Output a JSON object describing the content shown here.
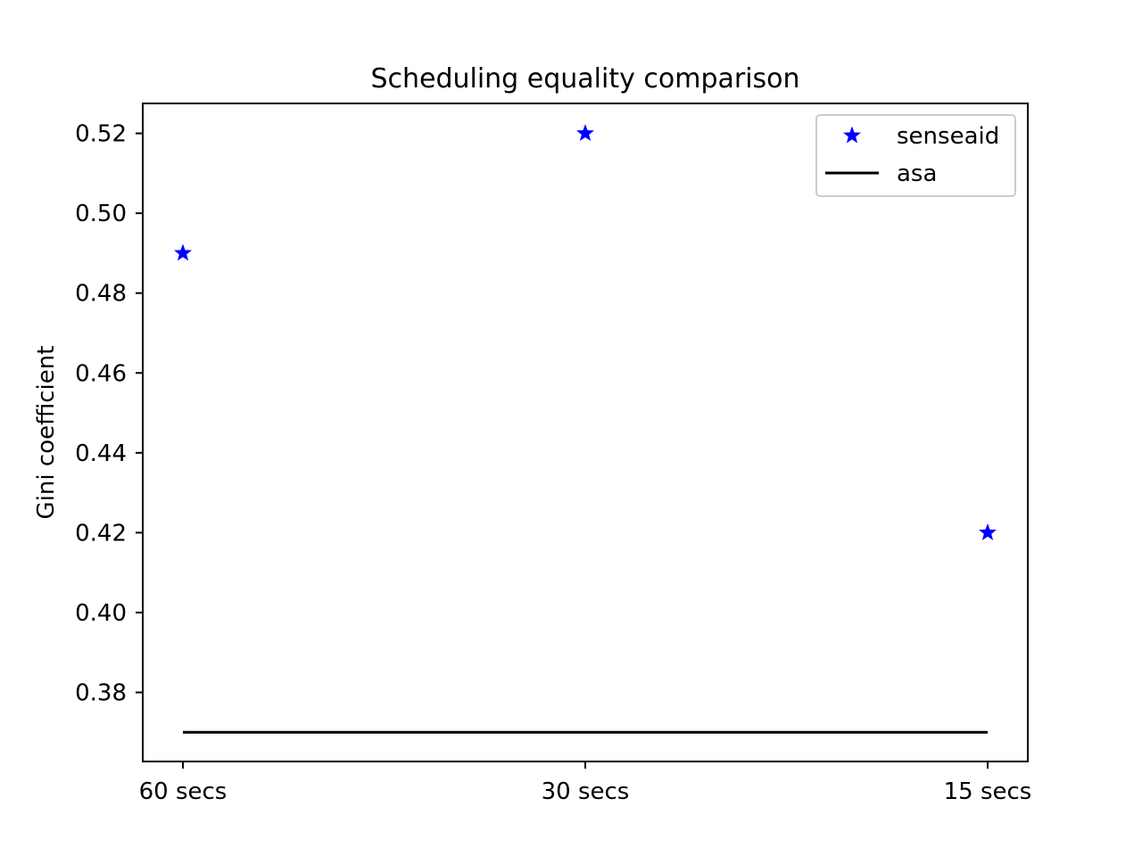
{
  "chart_data": {
    "type": "scatter",
    "title": "Scheduling equality comparison",
    "xlabel": "",
    "ylabel": "Gini coefficient",
    "categories": [
      "60 secs",
      "30 secs",
      "15 secs"
    ],
    "yticks": [
      "0.38",
      "0.40",
      "0.42",
      "0.44",
      "0.46",
      "0.48",
      "0.50",
      "0.52"
    ],
    "ylim": [
      0.3627,
      0.5275
    ],
    "grid": false,
    "legend_position": "top-right",
    "series": [
      {
        "name": "senseaid",
        "style": "star-marker",
        "color": "#0000ff",
        "values": [
          0.49,
          0.52,
          0.42
        ]
      },
      {
        "name": "asa",
        "style": "line",
        "color": "#000000",
        "values": [
          0.37,
          0.37,
          0.37
        ]
      }
    ]
  }
}
